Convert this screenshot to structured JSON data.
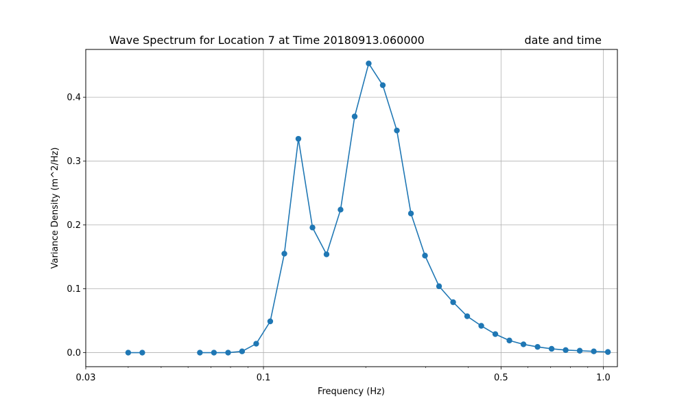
{
  "chart_data": {
    "type": "line",
    "title": "Wave Spectrum for Location 7 at Time 20180913.060000",
    "title_right": "date and time",
    "xlabel": "Frequency (Hz)",
    "ylabel": "Variance Density (m^2/Hz)",
    "xscale": "log",
    "xlim": [
      0.03,
      1.1
    ],
    "ylim": [
      -0.022,
      0.475
    ],
    "xticks": [
      0.03,
      0.1,
      0.5,
      1.0
    ],
    "xtick_labels": [
      "0.03",
      "0.1",
      "0.5",
      "1.0"
    ],
    "yticks": [
      0.0,
      0.1,
      0.2,
      0.3,
      0.4
    ],
    "ytick_labels": [
      "0.0",
      "0.1",
      "0.2",
      "0.3",
      "0.4"
    ],
    "grid": true,
    "color": "#1f77b4",
    "series": [
      {
        "segments": [
          {
            "x": [
              0.04,
              0.044
            ],
            "y": [
              0.0,
              0.0
            ]
          },
          {
            "x": [
              0.065,
              0.0715,
              0.0787,
              0.0865,
              0.0952,
              0.1047,
              0.1152,
              0.1267,
              0.1394,
              0.1533,
              0.1686,
              0.1855,
              0.204,
              0.2244,
              0.2469,
              0.2716,
              0.2987,
              0.3286,
              0.3615,
              0.3976,
              0.4374,
              0.4811,
              0.5292,
              0.5821,
              0.6404,
              0.7044,
              0.7748,
              0.8523,
              0.9375,
              1.0313
            ],
            "y": [
              0.0,
              0.0,
              0.0,
              0.002,
              0.014,
              0.049,
              0.155,
              0.335,
              0.196,
              0.154,
              0.224,
              0.37,
              0.453,
              0.419,
              0.348,
              0.218,
              0.152,
              0.104,
              0.079,
              0.057,
              0.042,
              0.029,
              0.019,
              0.013,
              0.009,
              0.006,
              0.004,
              0.003,
              0.002,
              0.001
            ]
          }
        ]
      }
    ]
  }
}
